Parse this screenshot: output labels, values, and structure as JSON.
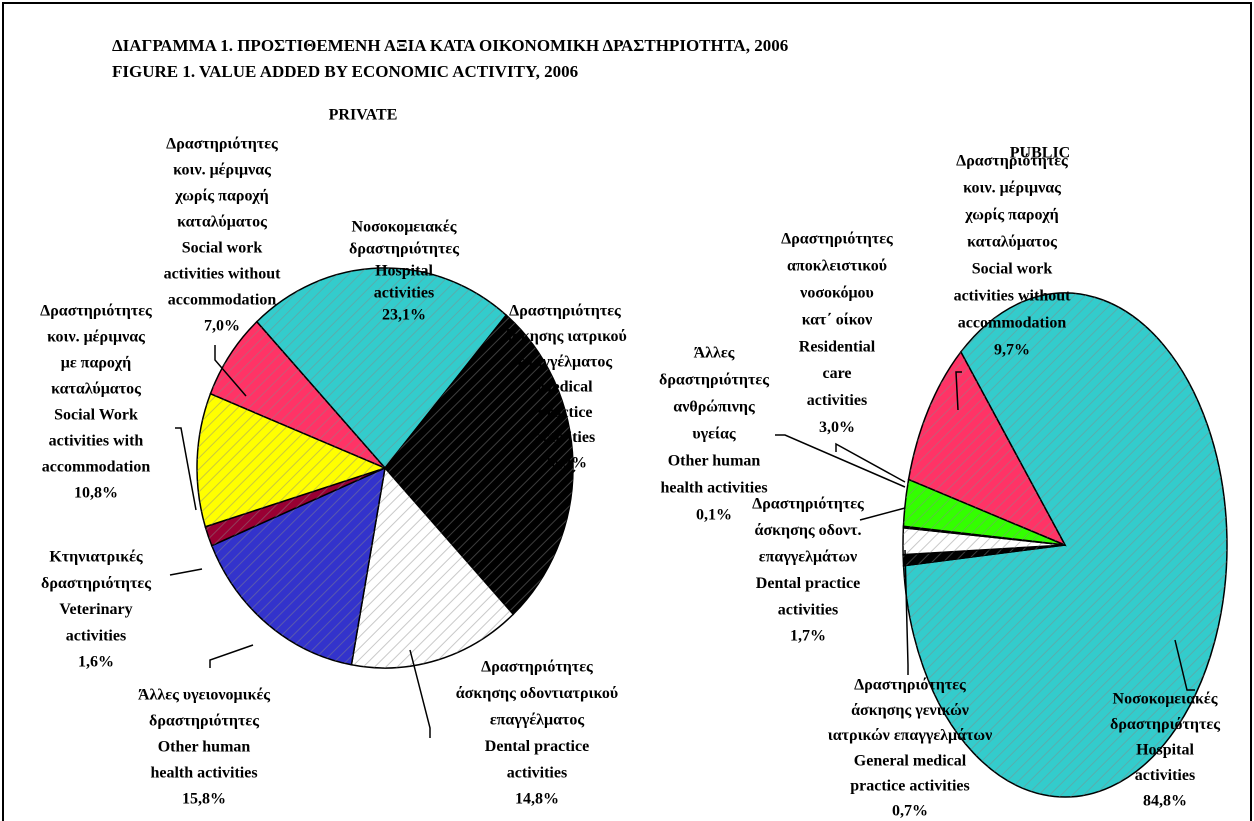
{
  "title": [
    "ΔΙΑΓΡΑΜΜΑ 1. ΠΡΟΣΤΙΘΕΜΕΝΗ ΑΞΙΑ ΚΑΤΑ ΟΙΚΟΝΟΜΙΚΗ ΔΡΑΣΤΗΡΙΟΤΗΤΑ, 2006",
    "FIGURE 1. VALUE ADDED BY ECONOMIC ACTIVITY, 2006"
  ],
  "chart_data": [
    {
      "type": "pie",
      "title": "PRIVATE",
      "categories": [
        [
          "Νοσοκομειακές",
          "δραστηριότητες",
          "Hospital",
          "activities"
        ],
        [
          "Δραστηριότητες",
          "άσκησης ιατρικού",
          "επαγγέλματος",
          "Medical",
          "practice",
          "activities"
        ],
        [
          "Δραστηριότητες",
          "άσκησης οδοντιατρικού",
          "επαγγέλματος",
          "Dental practice",
          "activities"
        ],
        [
          "Άλλες υγειονομικές",
          "δραστηριότητες",
          "Other human",
          "health activities"
        ],
        [
          "Κτηνιατρικές",
          "δραστηριότητες",
          "Veterinary",
          "activities"
        ],
        [
          "Δραστηριότητες",
          "κοιν. μέριμνας",
          "με παροχή",
          "καταλύματος",
          "Social Work",
          "activities with",
          "accommodation"
        ],
        [
          "Δραστηριότητες",
          "κοιν. μέριμνας",
          "χωρίς παροχή",
          "καταλύματος",
          "Social work",
          "activities without",
          "accommodation"
        ]
      ],
      "values": [
        23.1,
        26.9,
        14.8,
        15.8,
        1.6,
        10.8,
        7.0
      ],
      "value_labels": [
        "23,1%",
        "26,9%",
        "14,8%",
        "15,8%",
        "1,6%",
        "10,8%",
        "7,0%"
      ],
      "colors": [
        "#33cccc",
        "#000000",
        "#ffffff",
        "#3333cc",
        "#990033",
        "#ffff00",
        "#ff3366"
      ]
    },
    {
      "type": "pie",
      "title": "PUBLIC",
      "categories": [
        [
          "Νοσοκομειακές",
          "δραστηριότητες",
          "Hospital",
          "activities"
        ],
        [
          "Δραστηριότητες",
          "άσκησης γενικών",
          "ιατρικών επαγγελμάτων",
          "General medical",
          "practice activities"
        ],
        [
          "Δραστηριότητες",
          "άσκησης οδοντ.",
          "επαγγελμάτων",
          "Dental practice",
          "activities"
        ],
        [
          "Άλλες",
          "δραστηριότητες",
          "ανθρώπινης",
          "υγείας",
          "Other human",
          "health activities"
        ],
        [
          "Δραστηριότητες",
          "αποκλειστικού",
          "νοσοκόμου",
          "κατ΄ οίκον",
          "Residential",
          "care",
          "activities"
        ],
        [
          "Δραστηριότητες",
          "κοιν. μέριμνας",
          "χωρίς παροχή",
          "καταλύματος",
          "Social work",
          "activities without",
          "accommodation"
        ]
      ],
      "values": [
        84.8,
        0.7,
        1.7,
        0.1,
        3.0,
        9.7
      ],
      "value_labels": [
        "84,8%",
        "0,7%",
        "1,7%",
        "0,1%",
        "3,0%",
        "9,7%"
      ],
      "colors": [
        "#33cccc",
        "#000000",
        "#ffffff",
        "#3333cc",
        "#33ff00",
        "#ff3366"
      ]
    }
  ]
}
